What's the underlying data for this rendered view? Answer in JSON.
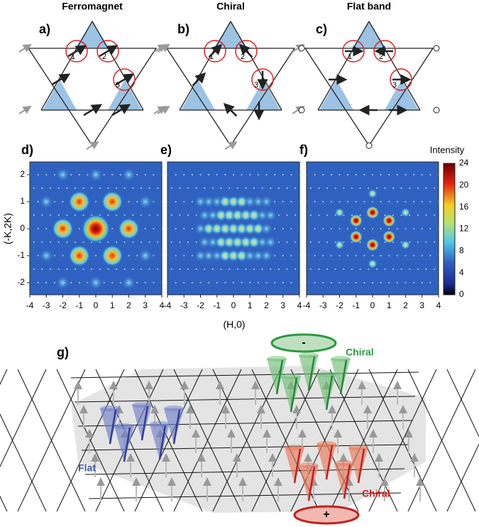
{
  "panels": [
    {
      "label": "a)",
      "title": "Ferromagnet",
      "sites": [
        "1",
        "2",
        "3"
      ]
    },
    {
      "label": "b)",
      "title": "Chiral",
      "sites": [
        "1",
        "2",
        "3"
      ]
    },
    {
      "label": "c)",
      "title": "Flat band",
      "sites": [
        "1",
        "2",
        "3"
      ]
    }
  ],
  "maps": {
    "labels": [
      "d)",
      "e)",
      "f)"
    ],
    "x_ticks": [
      -4,
      -3,
      -2,
      -1,
      0,
      1,
      2,
      3,
      4
    ],
    "y_ticks": [
      2,
      1,
      0,
      -1,
      -2
    ],
    "x_label": "(H,0)",
    "y_label": "(-K,2K)",
    "colorbar": {
      "title": "Intensity",
      "ticks": [
        24,
        20,
        16,
        12,
        8,
        4,
        0
      ]
    }
  },
  "diagram": {
    "label": "g)",
    "chiral_top": "Chiral",
    "minus": "-",
    "chiral_bottom": "Chiral",
    "plus": "+",
    "flat": "Flat"
  }
}
